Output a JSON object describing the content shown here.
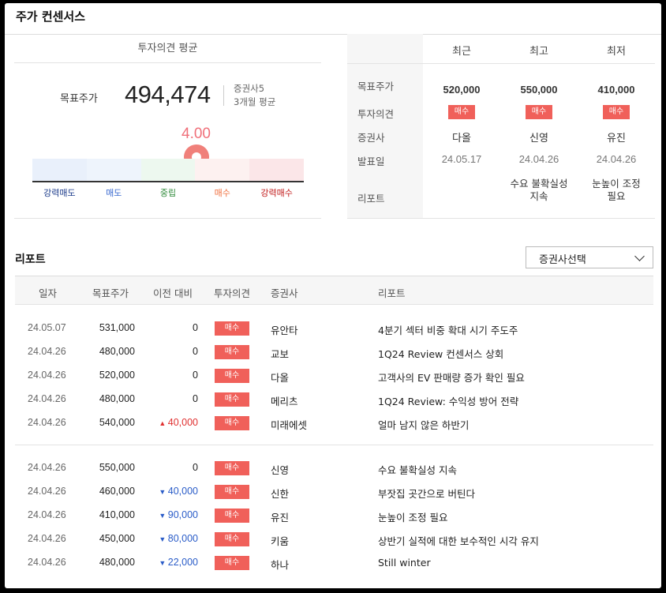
{
  "title": "주가 컨센서스",
  "consensus": {
    "header": "투자의견 평균",
    "target_label": "목표주가",
    "target_value": "494,474",
    "meta_firms": "증권사5",
    "meta_period": "3개월 평균",
    "score": "4.00",
    "score_value": 4.0,
    "scale": [
      {
        "label": "강력매도",
        "color": "#1a3a8a",
        "bg": "#e9f0fb"
      },
      {
        "label": "매도",
        "color": "#3a6ad0",
        "bg": "#eef4fc"
      },
      {
        "label": "중립",
        "color": "#2f8a3a",
        "bg": "#edf8ef"
      },
      {
        "label": "매수",
        "color": "#f07040",
        "bg": "#fdf1f0"
      },
      {
        "label": "강력매수",
        "color": "#c01818",
        "bg": "#fbe6e8"
      }
    ]
  },
  "summary": {
    "columns": [
      "최근",
      "최고",
      "최저"
    ],
    "row_labels": {
      "target": "목표주가",
      "opinion": "투자의견",
      "firm": "증권사",
      "date": "발표일",
      "report": "리포트"
    },
    "cols": [
      {
        "target": "520,000",
        "opinion": "매수",
        "firm": "다올",
        "date": "24.05.17",
        "report_line1": "",
        "report_line2": ""
      },
      {
        "target": "550,000",
        "opinion": "매수",
        "firm": "신영",
        "date": "24.04.26",
        "report_line1": "수요 불확실성",
        "report_line2": "지속"
      },
      {
        "target": "410,000",
        "opinion": "매수",
        "firm": "유진",
        "date": "24.04.26",
        "report_line1": "눈높이 조정",
        "report_line2": "필요"
      }
    ]
  },
  "report": {
    "title": "리포트",
    "select_label": "증권사선택",
    "headers": {
      "date": "일자",
      "target": "목표주가",
      "change": "이전 대비",
      "opinion": "투자의견",
      "firm": "증권사",
      "title": "리포트"
    },
    "rows": [
      {
        "date": "24.05.07",
        "target": "531,000",
        "change": "0",
        "dir": "",
        "opinion": "매수",
        "firm": "유안타",
        "title": "4분기 섹터 비중 확대 시기 주도주"
      },
      {
        "date": "24.04.26",
        "target": "480,000",
        "change": "0",
        "dir": "",
        "opinion": "매수",
        "firm": "교보",
        "title": "1Q24 Review 컨센서스 상회"
      },
      {
        "date": "24.04.26",
        "target": "520,000",
        "change": "0",
        "dir": "",
        "opinion": "매수",
        "firm": "다올",
        "title": "고객사의 EV 판매량 증가 확인 필요"
      },
      {
        "date": "24.04.26",
        "target": "480,000",
        "change": "0",
        "dir": "",
        "opinion": "매수",
        "firm": "메리츠",
        "title": "1Q24 Review: 수익성 방어 전략"
      },
      {
        "date": "24.04.26",
        "target": "540,000",
        "change": "40,000",
        "dir": "up",
        "opinion": "매수",
        "firm": "미래에셋",
        "title": "얼마 남지 않은 하반기"
      },
      {
        "date": "24.04.26",
        "target": "550,000",
        "change": "0",
        "dir": "",
        "opinion": "매수",
        "firm": "신영",
        "title": "수요 불확실성 지속"
      },
      {
        "date": "24.04.26",
        "target": "460,000",
        "change": "40,000",
        "dir": "down",
        "opinion": "매수",
        "firm": "신한",
        "title": "부잣집 곳간으로 버틴다"
      },
      {
        "date": "24.04.26",
        "target": "410,000",
        "change": "90,000",
        "dir": "down",
        "opinion": "매수",
        "firm": "유진",
        "title": "눈높이 조정 필요"
      },
      {
        "date": "24.04.26",
        "target": "450,000",
        "change": "80,000",
        "dir": "down",
        "opinion": "매수",
        "firm": "키움",
        "title": "상반기 실적에 대한 보수적인 시각 유지"
      },
      {
        "date": "24.04.26",
        "target": "480,000",
        "change": "22,000",
        "dir": "down",
        "opinion": "매수",
        "firm": "하나",
        "title": "Still winter"
      }
    ]
  }
}
